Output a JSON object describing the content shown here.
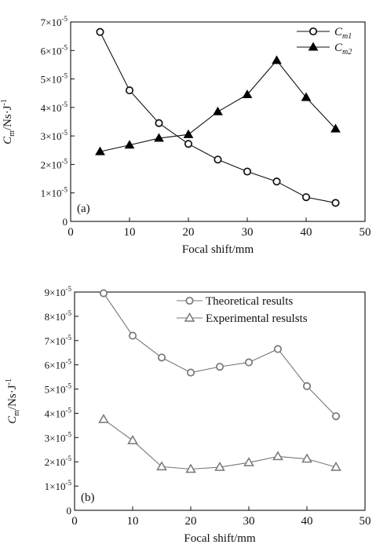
{
  "chart_data": [
    {
      "type": "line",
      "panel_label": "(a)",
      "xlabel": "Focal shift/mm",
      "ylabel": "C_m/Ns·J^-1",
      "xlim": [
        0,
        50
      ],
      "ylim": [
        0,
        7e-05
      ],
      "xticks": [
        0,
        10,
        20,
        30,
        40,
        50
      ],
      "yticks": [
        0,
        1e-05,
        2e-05,
        3e-05,
        4e-05,
        5e-05,
        6e-05,
        7e-05
      ],
      "ytick_exponent": "-5",
      "legend_position": "top-right",
      "x": [
        5,
        10,
        15,
        20,
        25,
        30,
        35,
        40,
        45
      ],
      "series": [
        {
          "name": "C_m1",
          "marker": "open-circle",
          "values": [
            6.65e-05,
            4.6e-05,
            3.45e-05,
            2.72e-05,
            2.17e-05,
            1.75e-05,
            1.4e-05,
            8.5e-06,
            6.5e-06
          ]
        },
        {
          "name": "C_m2",
          "marker": "filled-triangle",
          "values": [
            2.45e-05,
            2.68e-05,
            2.92e-05,
            3.05e-05,
            3.85e-05,
            4.45e-05,
            5.65e-05,
            4.35e-05,
            3.25e-05
          ]
        }
      ]
    },
    {
      "type": "line",
      "panel_label": "(b)",
      "xlabel": "Focal shift/mm",
      "ylabel": "C_m/Ns·J^-1",
      "xlim": [
        0,
        50
      ],
      "ylim": [
        0,
        9e-05
      ],
      "xticks": [
        0,
        10,
        20,
        30,
        40,
        50
      ],
      "yticks": [
        0,
        1e-05,
        2e-05,
        3e-05,
        4e-05,
        5e-05,
        6e-05,
        7e-05,
        8e-05,
        9e-05
      ],
      "ytick_exponent": "-5",
      "legend_position": "top",
      "x": [
        5,
        10,
        15,
        20,
        25,
        30,
        35,
        40,
        45
      ],
      "series": [
        {
          "name": "Theoretical results",
          "marker": "open-circle",
          "values": [
            8.95e-05,
            7.2e-05,
            6.3e-05,
            5.68e-05,
            5.92e-05,
            6.1e-05,
            6.65e-05,
            5.12e-05,
            3.88e-05
          ]
        },
        {
          "name": "Experimental resulsts",
          "marker": "open-triangle",
          "values": [
            3.75e-05,
            2.88e-05,
            1.8e-05,
            1.7e-05,
            1.78e-05,
            1.97e-05,
            2.22e-05,
            2.12e-05,
            1.78e-05
          ]
        }
      ]
    }
  ]
}
